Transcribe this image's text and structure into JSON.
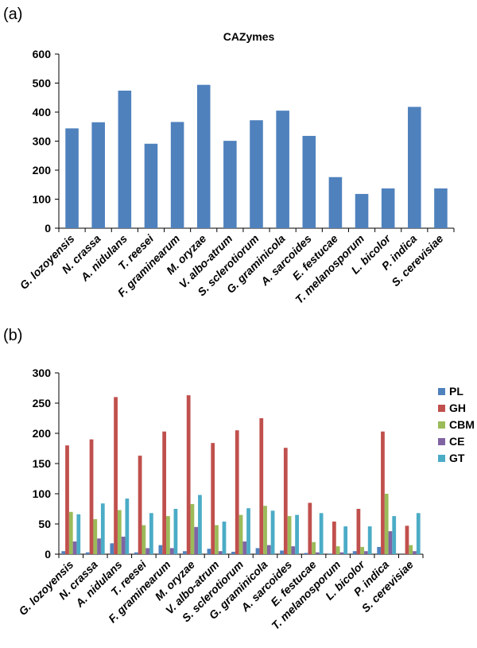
{
  "chart_data": [
    {
      "panel": "(a)",
      "type": "bar",
      "title": "CAZymes",
      "xlabel": "",
      "ylabel": "",
      "ylim": [
        0,
        600
      ],
      "yticks": [
        0,
        100,
        200,
        300,
        400,
        500,
        600
      ],
      "grid": false,
      "categories": [
        "G. lozoyensis",
        "N. crassa",
        "A. nidulans",
        "T. reesei",
        "F. graminearum",
        "M. oryzae",
        "V. albo-atrum",
        "S. sclerotiorum",
        "G. graminicola",
        "A. sarcoides",
        "E. festucae",
        "T. melanosporum",
        "L. bicolor",
        "P. indica",
        "S. cerevisiae"
      ],
      "values": [
        344,
        365,
        474,
        291,
        366,
        494,
        301,
        372,
        405,
        318,
        176,
        118,
        137,
        418,
        137
      ],
      "color": "#4F81BD"
    },
    {
      "panel": "(b)",
      "type": "bar",
      "title": "",
      "xlabel": "",
      "ylabel": "",
      "ylim": [
        0,
        300
      ],
      "yticks": [
        0,
        50,
        100,
        150,
        200,
        250,
        300
      ],
      "grid": false,
      "legend": "right",
      "categories": [
        "G. lozoyensis",
        "N. crassa",
        "A. nidulans",
        "T. reesei",
        "F. graminearum",
        "M. oryzae",
        "V. albo-atrum",
        "S. sclerotiorum",
        "G. graminicola",
        "A. sarcoides",
        "E. festucae",
        "T. melanosporum",
        "L. bicolor",
        "P. indica",
        "S. cerevisiae"
      ],
      "series": [
        {
          "name": "PL",
          "color": "#4F81BD",
          "values": [
            5,
            3,
            18,
            3,
            15,
            5,
            9,
            4,
            10,
            6,
            2,
            1,
            5,
            12,
            0
          ]
        },
        {
          "name": "GH",
          "color": "#C0504D",
          "values": [
            180,
            190,
            260,
            163,
            203,
            263,
            184,
            205,
            225,
            176,
            85,
            54,
            75,
            203,
            47
          ]
        },
        {
          "name": "CBM",
          "color": "#9BBB59",
          "values": [
            70,
            58,
            73,
            48,
            63,
            83,
            48,
            65,
            80,
            63,
            20,
            13,
            12,
            100,
            15
          ]
        },
        {
          "name": "CE",
          "color": "#8064A2",
          "values": [
            21,
            26,
            29,
            10,
            10,
            45,
            5,
            21,
            15,
            13,
            3,
            3,
            5,
            38,
            5
          ]
        },
        {
          "name": "GT",
          "color": "#4BACC6",
          "values": [
            66,
            84,
            92,
            68,
            75,
            98,
            54,
            76,
            72,
            65,
            68,
            46,
            46,
            63,
            68
          ]
        }
      ]
    }
  ]
}
